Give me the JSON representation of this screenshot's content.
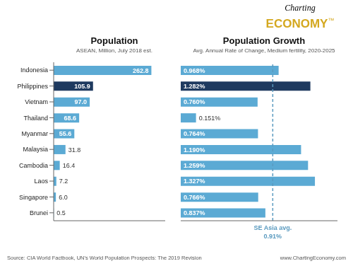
{
  "chart_data": [
    {
      "type": "bar",
      "orientation": "horizontal",
      "title": "Population",
      "subtitle": "ASEAN, Million, July 2018 est.",
      "categories": [
        "Indonesia",
        "Philippines",
        "Vietnam",
        "Thailand",
        "Myanmar",
        "Malaysia",
        "Cambodia",
        "Laos",
        "Singapore",
        "Brunei"
      ],
      "values": [
        262.8,
        105.9,
        97.0,
        68.6,
        55.6,
        31.8,
        16.4,
        7.2,
        6.0,
        0.5
      ],
      "value_labels": [
        "262.8",
        "105.9",
        "97.0",
        "68.6",
        "55.6",
        "31.8",
        "16.4",
        "7.2",
        "6.0",
        "0.5"
      ],
      "data_labels": true,
      "colors": [
        "#5baad4",
        "#1e3a5f",
        "#5baad4",
        "#5baad4",
        "#5baad4",
        "#5baad4",
        "#5baad4",
        "#5baad4",
        "#5baad4",
        "#5baad4"
      ],
      "xlim": [
        0,
        300
      ],
      "grid": false,
      "tick_labels": "y",
      "annotations": [
        {
          "text": "Source: CIA World Factbook, UN's World Population Prospects: The 2019 Revision"
        },
        {
          "text": "www.ChartingEconomy.com"
        },
        {
          "text": "Charting"
        },
        {
          "text": "ECONOMY",
          "color": "#d4a820"
        },
        {
          "text": "™",
          "color": "#d4a820"
        }
      ]
    },
    {
      "type": "bar",
      "orientation": "horizontal",
      "title": "Population Growth",
      "subtitle": "Avg. Annual Rate of Change, Medium fertility, 2020-2025",
      "categories": [
        "Indonesia",
        "Philippines",
        "Vietnam",
        "Thailand",
        "Myanmar",
        "Malaysia",
        "Cambodia",
        "Laos",
        "Singapore",
        "Brunei"
      ],
      "values": [
        0.968,
        1.282,
        0.76,
        0.151,
        0.764,
        1.19,
        1.259,
        1.327,
        0.766,
        0.837
      ],
      "value_labels": [
        "0.968%",
        "1.282%",
        "0.760%",
        "0.151%",
        "0.764%",
        "1.190%",
        "1.259%",
        "1.327%",
        "0.766%",
        "0.837%"
      ],
      "data_labels": true,
      "colors": [
        "#5baad4",
        "#1e3a5f",
        "#5baad4",
        "#5baad4",
        "#5baad4",
        "#5baad4",
        "#5baad4",
        "#5baad4",
        "#5baad4",
        "#5baad4"
      ],
      "xlim": [
        0,
        1.55
      ],
      "grid": false,
      "tick_labels": false,
      "reference_line": {
        "value": 0.91,
        "label": "SE Asia avg.",
        "value_label": "0.91%",
        "color": "#5a9abf",
        "line_style": "dashed"
      }
    }
  ]
}
